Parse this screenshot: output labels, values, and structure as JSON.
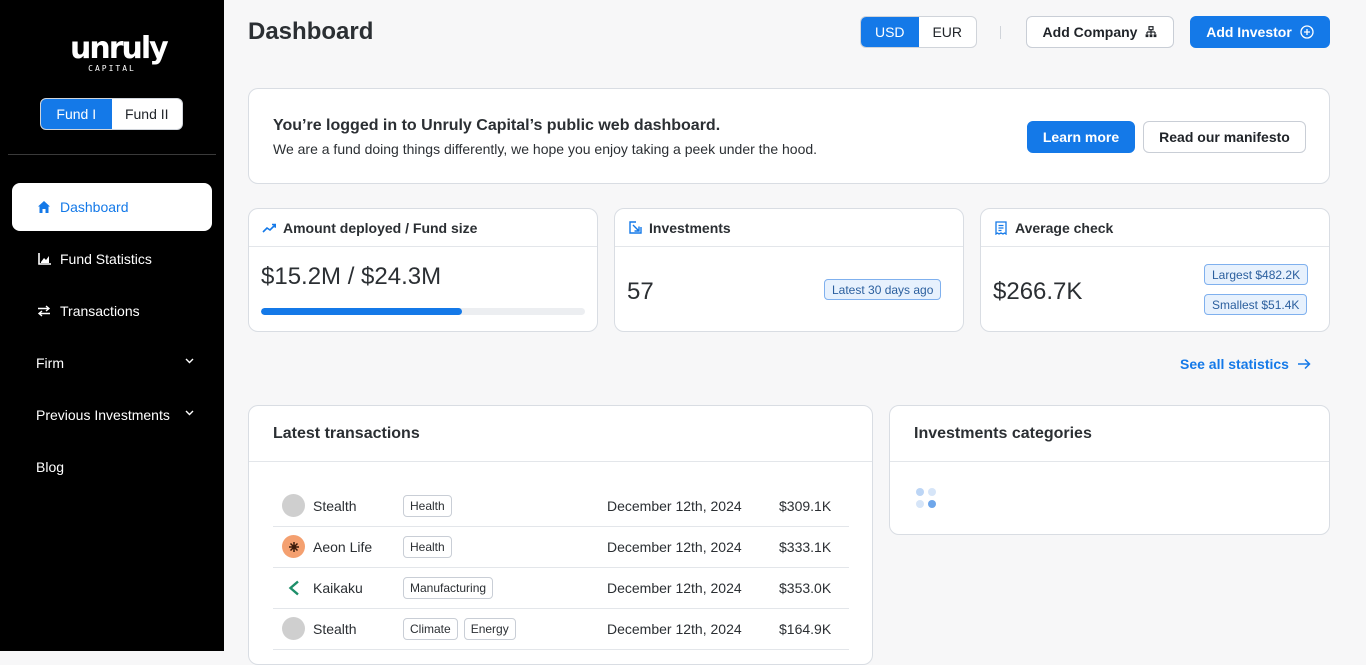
{
  "sidebar": {
    "logo": {
      "word": "unruly",
      "sub": "CAPITAL"
    },
    "funds": [
      "Fund I",
      "Fund II"
    ],
    "active_fund": "Fund I",
    "nav": [
      {
        "label": "Dashboard",
        "icon": "home-icon",
        "active": true
      },
      {
        "label": "Fund Statistics",
        "icon": "chart-icon"
      },
      {
        "label": "Transactions",
        "icon": "swap-icon"
      },
      {
        "label": "Firm",
        "expandable": true
      },
      {
        "label": "Previous Investments",
        "expandable": true
      },
      {
        "label": "Blog"
      }
    ]
  },
  "header": {
    "title": "Dashboard",
    "currencies": [
      "USD",
      "EUR"
    ],
    "active_currency": "USD",
    "add_company": "Add Company",
    "add_investor": "Add Investor"
  },
  "welcome": {
    "heading": "You’re logged in to Unruly Capital’s public web dashboard.",
    "text": "We are a fund doing things differently, we hope you enjoy taking a peek under the hood.",
    "learn_more": "Learn more",
    "manifesto": "Read our manifesto"
  },
  "stats": {
    "deployed": {
      "label": "Amount deployed / Fund size",
      "value": "$15.2M / $24.3M",
      "progress": 0.62
    },
    "investments": {
      "label": "Investments",
      "value": "57",
      "badge": "Latest 30 days ago"
    },
    "average": {
      "label": "Average check",
      "value": "$266.7K",
      "largest": "Largest $482.2K",
      "smallest": "Smallest $51.4K"
    }
  },
  "see_all": "See all statistics",
  "transactions": {
    "title": "Latest transactions",
    "rows": [
      {
        "name": "Stealth",
        "tags": [
          "Health"
        ],
        "date": "December 12th, 2024",
        "amount": "$309.1K",
        "logo": "stealth-logo",
        "logo_color": "#cfcfcf"
      },
      {
        "name": "Aeon Life",
        "tags": [
          "Health"
        ],
        "date": "December 12th, 2024",
        "amount": "$333.1K",
        "logo": "aeon-life-logo",
        "logo_color": "#f4a070"
      },
      {
        "name": "Kaikaku",
        "tags": [
          "Manufacturing"
        ],
        "date": "December 12th, 2024",
        "amount": "$353.0K",
        "logo": "kaikaku-logo",
        "logo_color": "#1e8f6a"
      },
      {
        "name": "Stealth",
        "tags": [
          "Climate",
          "Energy"
        ],
        "date": "December 12th, 2024",
        "amount": "$164.9K",
        "logo": "stealth-logo",
        "logo_color": "#cfcfcf"
      }
    ]
  },
  "categories": {
    "title": "Investments categories"
  },
  "colors": {
    "accent": "#1479e8",
    "sidebar": "#000000",
    "badge_bg": "#e7f1fd"
  }
}
